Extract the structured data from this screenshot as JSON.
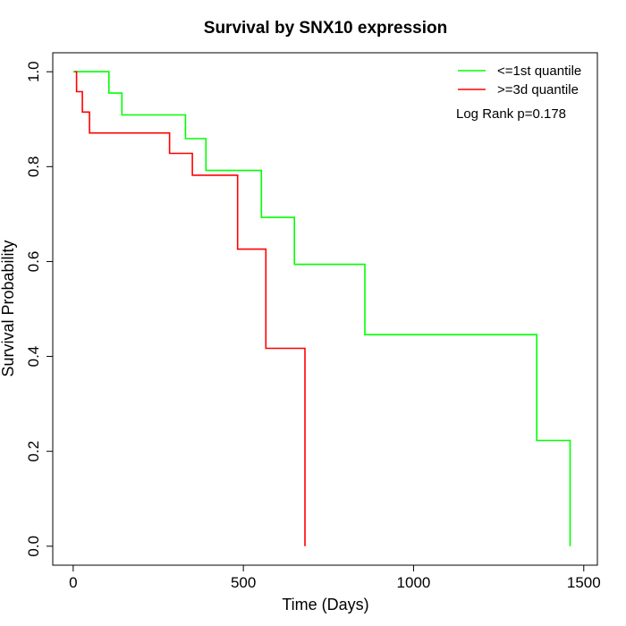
{
  "chart_data": {
    "type": "line",
    "title": "Survival by SNX10 expression",
    "xlabel": "Time (Days)",
    "ylabel": "Survival Probability",
    "xlim": [
      -60,
      1540
    ],
    "ylim": [
      -0.04,
      1.04
    ],
    "x_ticks": [
      0,
      500,
      1000,
      1500
    ],
    "x_tick_labels": [
      "0",
      "500",
      "1000",
      "1500"
    ],
    "y_ticks": [
      0.0,
      0.2,
      0.4,
      0.6,
      0.8,
      1.0
    ],
    "y_tick_labels": [
      "0.0",
      "0.2",
      "0.4",
      "0.6",
      "0.8",
      "1.0"
    ],
    "grid": false,
    "legend_position": "top-right",
    "annotation": "Log Rank p=0.178",
    "series": [
      {
        "name": "<=1st quantile",
        "color": "#00ff00",
        "step_points": [
          [
            0,
            1.0
          ],
          [
            105,
            1.0
          ],
          [
            105,
            0.955
          ],
          [
            143,
            0.955
          ],
          [
            143,
            0.909
          ],
          [
            330,
            0.909
          ],
          [
            330,
            0.859
          ],
          [
            390,
            0.859
          ],
          [
            390,
            0.792
          ],
          [
            553,
            0.792
          ],
          [
            553,
            0.693
          ],
          [
            650,
            0.693
          ],
          [
            650,
            0.594
          ],
          [
            857,
            0.594
          ],
          [
            857,
            0.446
          ],
          [
            1362,
            0.446
          ],
          [
            1362,
            0.223
          ],
          [
            1460,
            0.223
          ],
          [
            1460,
            0.0
          ]
        ]
      },
      {
        "name": ">=3d quantile",
        "color": "#ff0000",
        "step_points": [
          [
            5,
            1.0
          ],
          [
            10,
            1.0
          ],
          [
            10,
            0.958
          ],
          [
            27,
            0.958
          ],
          [
            27,
            0.915
          ],
          [
            48,
            0.915
          ],
          [
            48,
            0.871
          ],
          [
            283,
            0.871
          ],
          [
            283,
            0.828
          ],
          [
            350,
            0.828
          ],
          [
            350,
            0.782
          ],
          [
            483,
            0.782
          ],
          [
            483,
            0.626
          ],
          [
            566,
            0.626
          ],
          [
            566,
            0.417
          ],
          [
            681,
            0.417
          ],
          [
            681,
            0.0
          ]
        ]
      }
    ]
  }
}
